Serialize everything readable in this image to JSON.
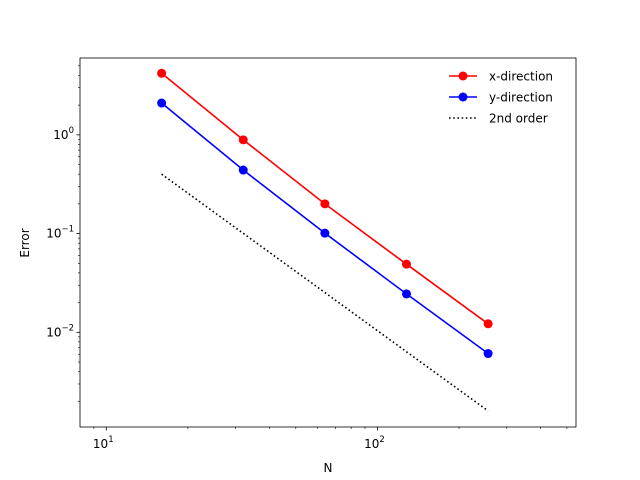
{
  "chart_data": {
    "type": "line",
    "title": "",
    "xlabel": "N",
    "ylabel": "Error",
    "xscale": "log",
    "yscale": "log",
    "xlim": [
      8,
      540
    ],
    "ylim": [
      0.0011,
      6
    ],
    "x_ticks": [
      {
        "value": 10,
        "base": "10",
        "exp": "1"
      },
      {
        "value": 100,
        "base": "10",
        "exp": "2"
      }
    ],
    "y_ticks": [
      {
        "value": 0.01,
        "base": "10",
        "exp": "−2"
      },
      {
        "value": 0.1,
        "base": "10",
        "exp": "−1"
      },
      {
        "value": 1,
        "base": "10",
        "exp": "0"
      }
    ],
    "grid": false,
    "legend_position": "top-right",
    "series": [
      {
        "name": "x-direction",
        "color": "#ff0000",
        "style": "solid",
        "marker": "circle",
        "x": [
          16,
          32,
          64,
          128,
          256
        ],
        "y": [
          4.2,
          0.89,
          0.2,
          0.049,
          0.0122
        ]
      },
      {
        "name": "y-direction",
        "color": "#0000ff",
        "style": "solid",
        "marker": "circle",
        "x": [
          16,
          32,
          64,
          128,
          256
        ],
        "y": [
          2.1,
          0.44,
          0.101,
          0.0245,
          0.0061
        ]
      },
      {
        "name": "2nd order",
        "color": "#000000",
        "style": "dotted",
        "marker": "none",
        "x": [
          16,
          256
        ],
        "y": [
          0.4,
          0.0016
        ]
      }
    ]
  }
}
